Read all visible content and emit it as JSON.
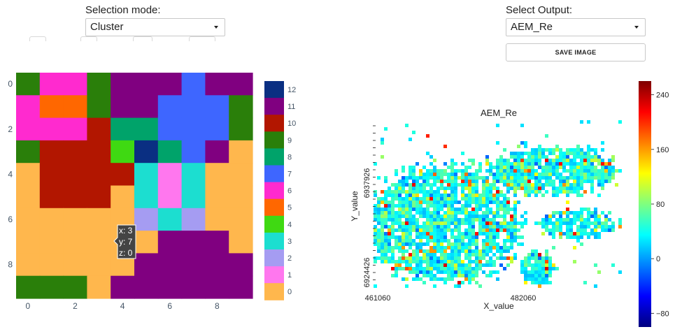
{
  "left_panel": {
    "mode_label": "Selection mode:",
    "mode_value": "Cluster"
  },
  "right_panel": {
    "output_label": "Select Output:",
    "output_value": "AEM_Re",
    "save_button_label": "SAVE IMAGE"
  },
  "colors": {
    "cluster_palette": {
      "0": "#FFB74D",
      "1": "#FF77EE",
      "2": "#A59CF2",
      "3": "#1CDED0",
      "4": "#3FD912",
      "5": "#FF6700",
      "6": "#FF2ACF",
      "7": "#3E66FF",
      "8": "#00A36A",
      "9": "#2A7F0A",
      "10": "#B21600",
      "11": "#800080",
      "12": "#0A2F82"
    },
    "jet_stops": [
      "#00007f",
      "#0000ff",
      "#007fff",
      "#00ffff",
      "#7fff7f",
      "#ffff00",
      "#ff7f00",
      "#ff0000",
      "#7f0000"
    ]
  },
  "chart_data": [
    {
      "type": "heatmap",
      "title": "",
      "xlabel": "",
      "ylabel": "",
      "x_ticks": [
        0,
        2,
        4,
        6,
        8
      ],
      "y_ticks": [
        0,
        2,
        4,
        6,
        8
      ],
      "xlim": [
        -0.5,
        9.5
      ],
      "ylim": [
        -0.5,
        9.5
      ],
      "y_reversed": true,
      "z": [
        [
          9,
          6,
          6,
          9,
          11,
          11,
          11,
          7,
          11,
          11
        ],
        [
          6,
          5,
          5,
          9,
          11,
          11,
          7,
          7,
          7,
          9
        ],
        [
          6,
          6,
          6,
          10,
          8,
          8,
          7,
          7,
          7,
          9
        ],
        [
          9,
          10,
          10,
          10,
          4,
          12,
          8,
          7,
          11,
          0
        ],
        [
          0,
          10,
          10,
          10,
          10,
          3,
          1,
          3,
          0,
          0
        ],
        [
          0,
          10,
          10,
          10,
          0,
          3,
          1,
          3,
          0,
          0
        ],
        [
          0,
          0,
          0,
          0,
          0,
          2,
          3,
          2,
          0,
          0
        ],
        [
          0,
          0,
          0,
          0,
          0,
          0,
          11,
          11,
          11,
          0
        ],
        [
          0,
          0,
          0,
          0,
          0,
          11,
          11,
          11,
          11,
          11
        ],
        [
          9,
          9,
          9,
          0,
          11,
          11,
          11,
          11,
          11,
          11
        ]
      ],
      "legend": {
        "type": "discrete",
        "entries": [
          "12",
          "11",
          "10",
          "9",
          "8",
          "7",
          "6",
          "5",
          "4",
          "3",
          "2",
          "1",
          "0"
        ],
        "placement": "right"
      },
      "hover_tooltip": {
        "x": 3,
        "y": 7,
        "z": 0,
        "lines": [
          "x: 3",
          "y: 7",
          "z: 0"
        ]
      }
    },
    {
      "type": "heatmap",
      "title": "AEM_Re",
      "xlabel": "X_value",
      "ylabel": "Y_value",
      "x_tick_labels": [
        "461060",
        "482060"
      ],
      "y_tick_labels": [
        "6924426",
        "6937926"
      ],
      "colorscale": "Jet",
      "colorbar": {
        "ticks": [
          240,
          160,
          80,
          0,
          -80
        ],
        "range": [
          -100,
          260
        ],
        "placement": "right"
      },
      "values_note_range": [
        -100,
        260
      ]
    }
  ]
}
